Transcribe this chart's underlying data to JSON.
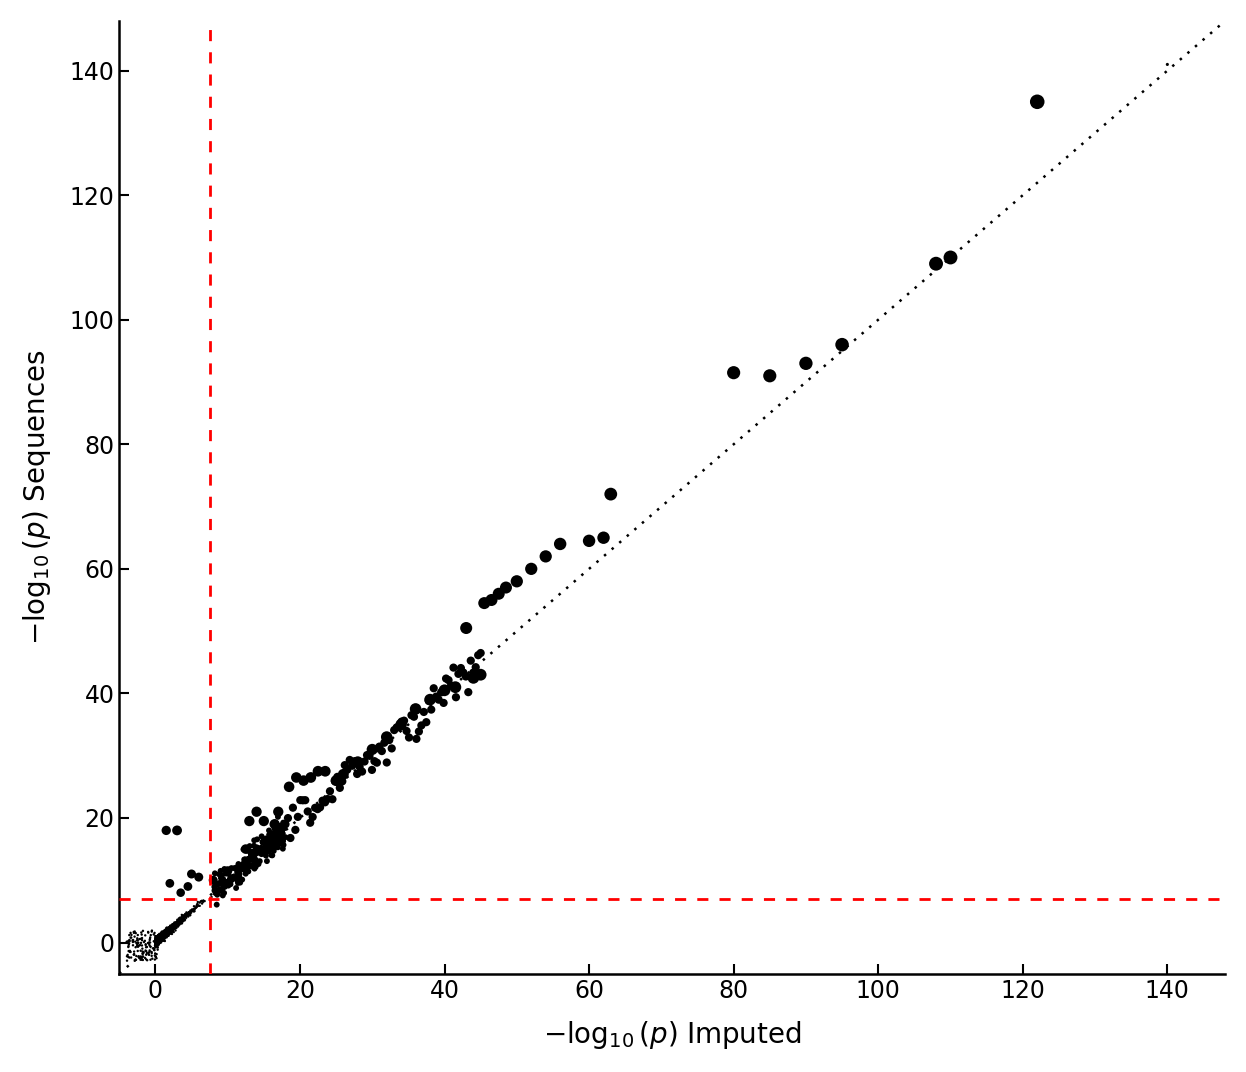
{
  "xlabel": "$-\\log_{10}(p)$ Imputed",
  "ylabel": "$-\\log_{10}(p)$ Sequences",
  "xlim": [
    -5,
    148
  ],
  "ylim": [
    -5,
    148
  ],
  "xticks": [
    0,
    20,
    40,
    60,
    80,
    100,
    120,
    140
  ],
  "yticks": [
    0,
    20,
    40,
    60,
    80,
    100,
    120,
    140
  ],
  "red_vline": 7.5,
  "red_hline": 7.0,
  "diag_line_color": "black",
  "red_line_color": "red",
  "background_color": "white",
  "scatter_color": "black",
  "key_points": [
    [
      122.0,
      135.0
    ],
    [
      110.0,
      110.0
    ],
    [
      108.0,
      109.0
    ],
    [
      95.0,
      96.0
    ],
    [
      90.0,
      93.0
    ],
    [
      85.0,
      91.0
    ],
    [
      80.0,
      91.5
    ],
    [
      63.0,
      72.0
    ],
    [
      62.0,
      65.0
    ],
    [
      60.0,
      64.5
    ],
    [
      47.0,
      55.0
    ],
    [
      46.0,
      54.5
    ],
    [
      45.5,
      54.0
    ],
    [
      45.0,
      53.5
    ],
    [
      44.5,
      53.0
    ],
    [
      43.5,
      50.5
    ],
    [
      43.0,
      50.0
    ],
    [
      42.5,
      49.5
    ],
    [
      42.0,
      50.0
    ],
    [
      41.5,
      49.0
    ],
    [
      41.0,
      41.5
    ],
    [
      40.5,
      41.0
    ],
    [
      40.0,
      40.5
    ],
    [
      39.5,
      40.0
    ],
    [
      39.0,
      40.5
    ],
    [
      38.5,
      38.5
    ],
    [
      38.0,
      38.0
    ],
    [
      25.0,
      26.0
    ],
    [
      13.0,
      19.0
    ],
    [
      12.0,
      18.5
    ],
    [
      11.0,
      17.0
    ],
    [
      10.5,
      16.0
    ],
    [
      3.0,
      18.0
    ],
    [
      5.0,
      11.0
    ],
    [
      2.0,
      9.5
    ],
    [
      4.5,
      9.0
    ],
    [
      3.5,
      8.0
    ],
    [
      6.0,
      10.5
    ],
    [
      8.0,
      9.5
    ],
    [
      10.0,
      11.0
    ],
    [
      12.5,
      14.5
    ]
  ]
}
